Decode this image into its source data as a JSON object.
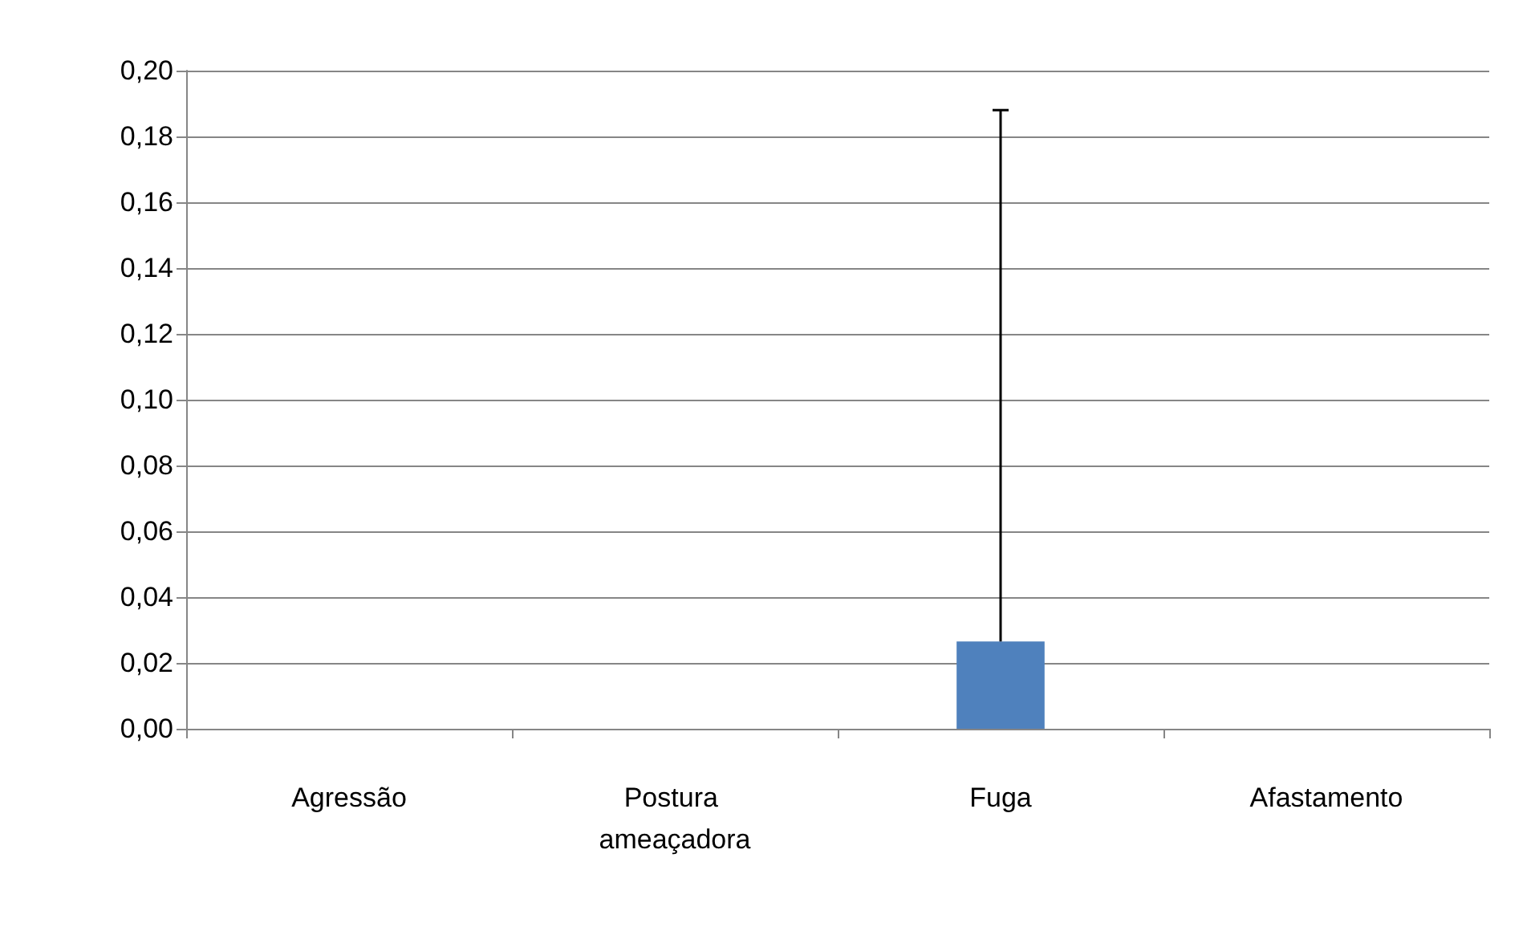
{
  "chart_data": {
    "type": "bar",
    "categories": [
      "Agressão",
      "Postura ameaçadora",
      "Fuga",
      "Afastamento"
    ],
    "values": [
      0,
      0,
      0.0265,
      0
    ],
    "errors": [
      null,
      null,
      [
        0.0265,
        0.188
      ],
      null
    ],
    "color": "#4f81bd",
    "ylim": [
      0,
      0.2
    ],
    "yticks": [
      {
        "value": 0,
        "label": "0,00"
      },
      {
        "value": 0.02,
        "label": "0,02"
      },
      {
        "value": 0.04,
        "label": "0,04"
      },
      {
        "value": 0.06,
        "label": "0,06"
      },
      {
        "value": 0.08,
        "label": "0,08"
      },
      {
        "value": 0.1,
        "label": "0,10"
      },
      {
        "value": 0.12,
        "label": "0,12"
      },
      {
        "value": 0.14,
        "label": "0,14"
      },
      {
        "value": 0.16,
        "label": "0,16"
      },
      {
        "value": 0.18,
        "label": "0,18"
      },
      {
        "value": 0.2,
        "label": "0,20"
      }
    ],
    "grid": "y"
  }
}
